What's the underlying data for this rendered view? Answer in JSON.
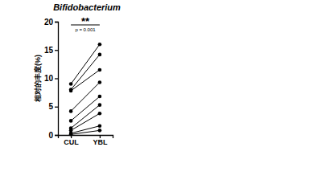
{
  "chart_data": {
    "type": "line",
    "title": "Bifidobacterium",
    "y_label": "相对的丰度(%)",
    "categories": [
      "CUL",
      "YBL"
    ],
    "series": [
      {
        "color": "#000000",
        "values": [
          9.0,
          16.0
        ]
      },
      {
        "color": "#000000",
        "values": [
          8.0,
          14.2
        ]
      },
      {
        "color": "#000000",
        "values": [
          7.8,
          11.5
        ]
      },
      {
        "color": "#000000",
        "values": [
          4.2,
          9.3
        ]
      },
      {
        "color": "#000000",
        "values": [
          2.5,
          6.8
        ]
      },
      {
        "color": "#000000",
        "values": [
          1.2,
          5.3
        ]
      },
      {
        "color": "#000000",
        "values": [
          0.8,
          3.8
        ]
      },
      {
        "color": "#000000",
        "values": [
          0.3,
          1.6
        ]
      },
      {
        "color": "#000000",
        "values": [
          0.1,
          0.8
        ]
      }
    ],
    "marker": "circle",
    "annotations": [
      "**",
      "p = 0.001"
    ],
    "ylim": [
      0,
      20
    ],
    "yticks": [
      0,
      5,
      10,
      15,
      20
    ],
    "grid": false
  }
}
